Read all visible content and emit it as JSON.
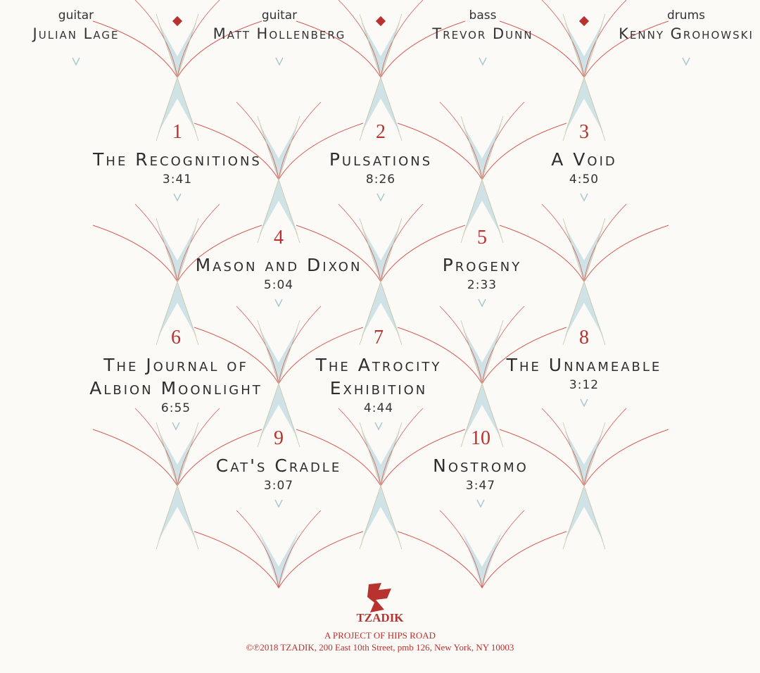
{
  "musicians": [
    {
      "role": "guitar",
      "name": "Julian Lage"
    },
    {
      "role": "guitar",
      "name": "Matt Hollenberg"
    },
    {
      "role": "bass",
      "name": "Trevor Dunn"
    },
    {
      "role": "drums",
      "name": "Kenny Grohowski"
    }
  ],
  "tracks": [
    {
      "number": "1",
      "title": "The Recognitions",
      "time": "3:41"
    },
    {
      "number": "2",
      "title": "Pulsations",
      "time": "8:26"
    },
    {
      "number": "3",
      "title": "A Void",
      "time": "4:50"
    },
    {
      "number": "4",
      "title": "Mason and Dixon",
      "time": "5:04"
    },
    {
      "number": "5",
      "title": "Progeny",
      "time": "2:33"
    },
    {
      "number": "6",
      "title": "The Journal of Albion Moonlight",
      "time": "6:55"
    },
    {
      "number": "7",
      "title": "The Atrocity Exhibition",
      "time": "4:44"
    },
    {
      "number": "8",
      "title": "The Unnameable",
      "time": "3:12"
    },
    {
      "number": "9",
      "title": "Cat's Cradle",
      "time": "3:07"
    },
    {
      "number": "10",
      "title": "Nostromo",
      "time": "3:47"
    }
  ],
  "footer": {
    "label": "TZADIK",
    "project": "A PROJECT OF HIPS ROAD",
    "copyright": "©℗2018 TZADIK, 200 East 10th Street, pmb 126, New York, NY 10003"
  }
}
